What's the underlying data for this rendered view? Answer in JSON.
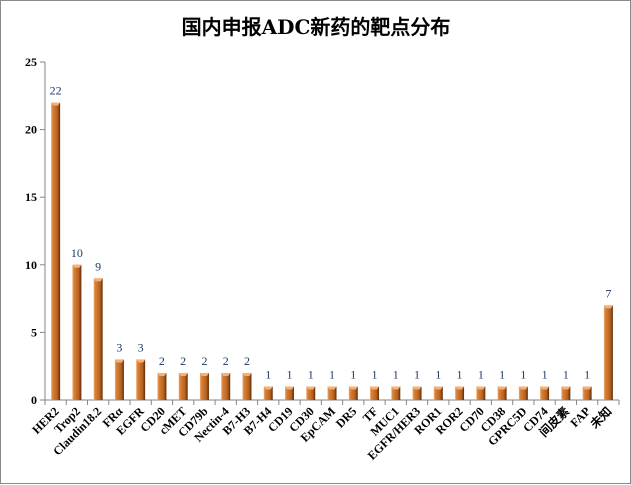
{
  "chart_data": {
    "type": "bar",
    "title": "国内申报ADC新药的靶点分布",
    "xlabel": "",
    "ylabel": "",
    "ylim": [
      0,
      25
    ],
    "yticks": [
      0,
      5,
      10,
      15,
      20,
      25
    ],
    "grid": false,
    "legend": "none",
    "categories": [
      "HER2",
      "Trop2",
      "Claudin18.2",
      "FRα",
      "EGFR",
      "CD20",
      "cMET",
      "CD79b",
      "Nectin-4",
      "B7-H3",
      "B7-H4",
      "CD19",
      "CD30",
      "EpCAM",
      "DR5",
      "TF",
      "MUC1",
      "EGFR/HER3",
      "ROR1",
      "ROR2",
      "CD70",
      "CD38",
      "GPRC5D",
      "CD74",
      "间皮素",
      "FAP",
      "未知"
    ],
    "values": [
      22,
      10,
      9,
      3,
      3,
      2,
      2,
      2,
      2,
      2,
      1,
      1,
      1,
      1,
      1,
      1,
      1,
      1,
      1,
      1,
      1,
      1,
      1,
      1,
      1,
      1,
      7
    ],
    "colors": {
      "bar": "#d9833a",
      "bar_dark": "#7a3d10",
      "bar_light": "#f4b27a",
      "axis": "#868686"
    }
  }
}
